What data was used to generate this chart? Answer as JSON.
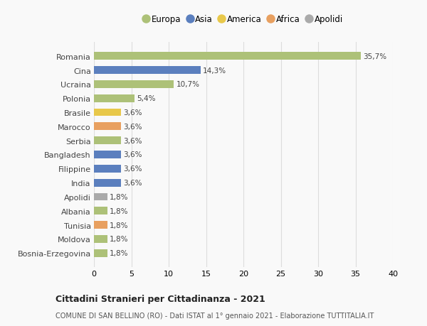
{
  "categories": [
    "Romania",
    "Cina",
    "Ucraina",
    "Polonia",
    "Brasile",
    "Marocco",
    "Serbia",
    "Bangladesh",
    "Filippine",
    "India",
    "Apolidi",
    "Albania",
    "Tunisia",
    "Moldova",
    "Bosnia-Erzegovina"
  ],
  "values": [
    35.7,
    14.3,
    10.7,
    5.4,
    3.6,
    3.6,
    3.6,
    3.6,
    3.6,
    3.6,
    1.8,
    1.8,
    1.8,
    1.8,
    1.8
  ],
  "labels": [
    "35,7%",
    "14,3%",
    "10,7%",
    "5,4%",
    "3,6%",
    "3,6%",
    "3,6%",
    "3,6%",
    "3,6%",
    "3,6%",
    "1,8%",
    "1,8%",
    "1,8%",
    "1,8%",
    "1,8%"
  ],
  "colors": [
    "#adc178",
    "#5b7fbe",
    "#adc178",
    "#adc178",
    "#e8c84a",
    "#e8a060",
    "#adc178",
    "#5b7fbe",
    "#5b7fbe",
    "#5b7fbe",
    "#aaaaaa",
    "#adc178",
    "#e8a060",
    "#adc178",
    "#adc178"
  ],
  "legend_labels": [
    "Europa",
    "Asia",
    "America",
    "Africa",
    "Apolidi"
  ],
  "legend_colors": [
    "#adc178",
    "#5b7fbe",
    "#e8c84a",
    "#e8a060",
    "#aaaaaa"
  ],
  "title": "Cittadini Stranieri per Cittadinanza - 2021",
  "subtitle": "COMUNE DI SAN BELLINO (RO) - Dati ISTAT al 1° gennaio 2021 - Elaborazione TUTTITALIA.IT",
  "xlim": [
    0,
    40
  ],
  "xticks": [
    0,
    5,
    10,
    15,
    20,
    25,
    30,
    35,
    40
  ],
  "bg_color": "#f9f9f9",
  "bar_height": 0.55
}
